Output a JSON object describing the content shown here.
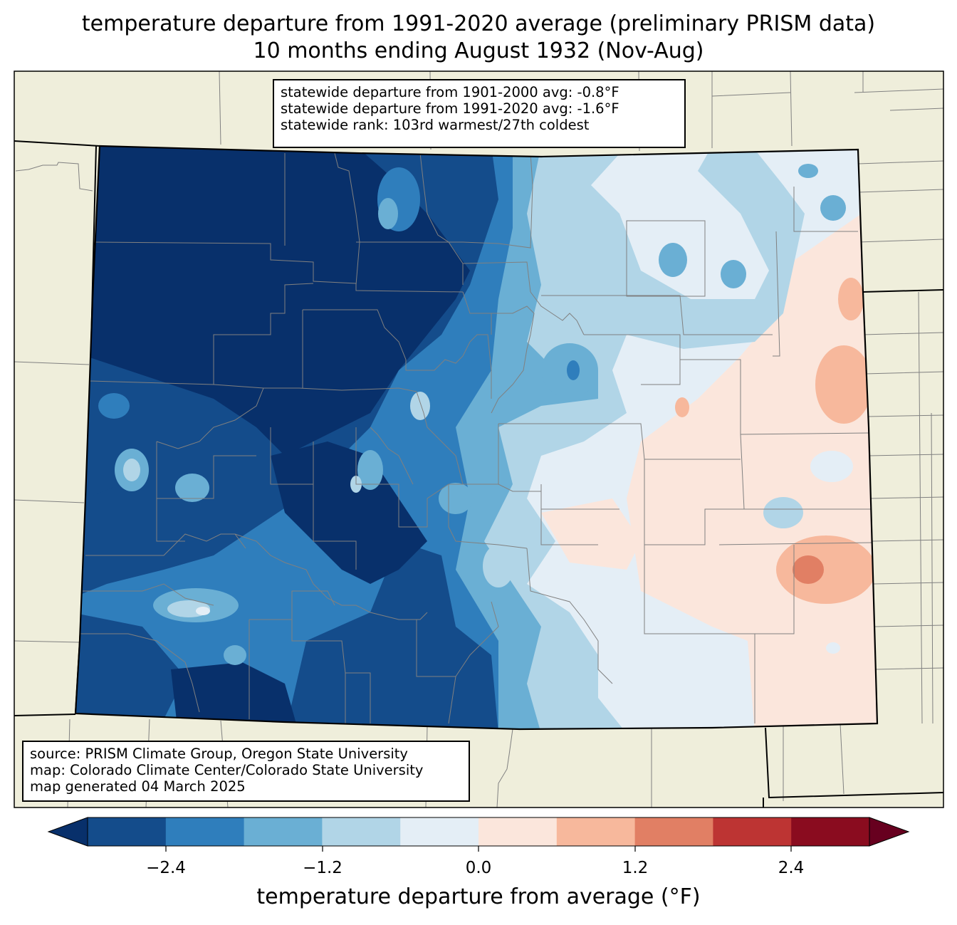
{
  "title": {
    "line1": "temperature departure from 1991-2020 average (preliminary PRISM data)",
    "line2": "10 months ending August 1932 (Nov-Aug)"
  },
  "stats": {
    "line1": "statewide departure from 1901-2000 avg: -0.8°F",
    "line2": "statewide departure from 1991-2020 avg: -1.6°F",
    "line3": "statewide rank: 103rd warmest/27th coldest"
  },
  "source": {
    "line1": "source: PRISM Climate Group, Oregon State University",
    "line2": "map: Colorado Climate Center/Colorado State University",
    "line3": "map generated 04 March 2025"
  },
  "colorbar": {
    "label": "temperature departure from average (°F)",
    "ticks": [
      "−2.4",
      "−1.2",
      "0.0",
      "1.2",
      "2.4"
    ],
    "colors": [
      "#08306b",
      "#144c8b",
      "#2f7ebc",
      "#6aafd4",
      "#b1d5e7",
      "#e4eef6",
      "#fbe6dc",
      "#f7b89c",
      "#e17f64",
      "#bd3433",
      "#8a0c1f",
      "#67001f"
    ]
  },
  "map_colors": {
    "background": "#efeedb",
    "state_border": "#000000",
    "county_border": "#808080"
  }
}
